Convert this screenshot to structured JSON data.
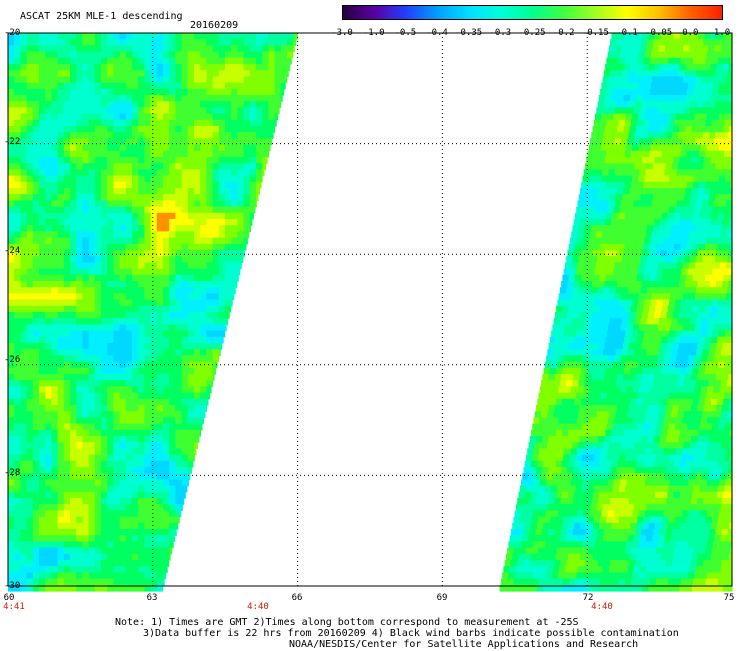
{
  "header": {
    "title": "ASCAT 25KM MLE-1 descending",
    "date": "20160209"
  },
  "colorbar": {
    "ticks": [
      "-3.0",
      "-1.0",
      "-0.5",
      "-0.4",
      "-0.35",
      "-0.3",
      "-0.25",
      "-0.2",
      "-0.15",
      "-0.1",
      "-0.05",
      "0.0",
      "1.0"
    ],
    "colors": [
      "#2a0040",
      "#5a00a0",
      "#2040ff",
      "#00a0ff",
      "#00e0ff",
      "#00ffd8",
      "#00ff90",
      "#40ff40",
      "#a0ff20",
      "#ffff00",
      "#ffc000",
      "#ff6000",
      "#ff2000"
    ]
  },
  "axes": {
    "y_labels": [
      "-20",
      "-22",
      "-24",
      "-26",
      "-28",
      "-30"
    ],
    "x_labels": [
      "60",
      "63",
      "66",
      "69",
      "72",
      "75"
    ],
    "time_labels": [
      "4:41",
      "4:40",
      "4:40"
    ],
    "lon_range": [
      60,
      75
    ],
    "lat_range": [
      -30,
      -20
    ]
  },
  "notes": {
    "line1": "Note: 1) Times are GMT 2)Times along bottom correspond to measurement at -25S",
    "line2": "3)Data buffer is 22 hrs from 20160209 4) Black wind barbs indicate possible contamination",
    "line3": "NOAA/NESDIS/Center for Satellite Applications and Research"
  }
}
